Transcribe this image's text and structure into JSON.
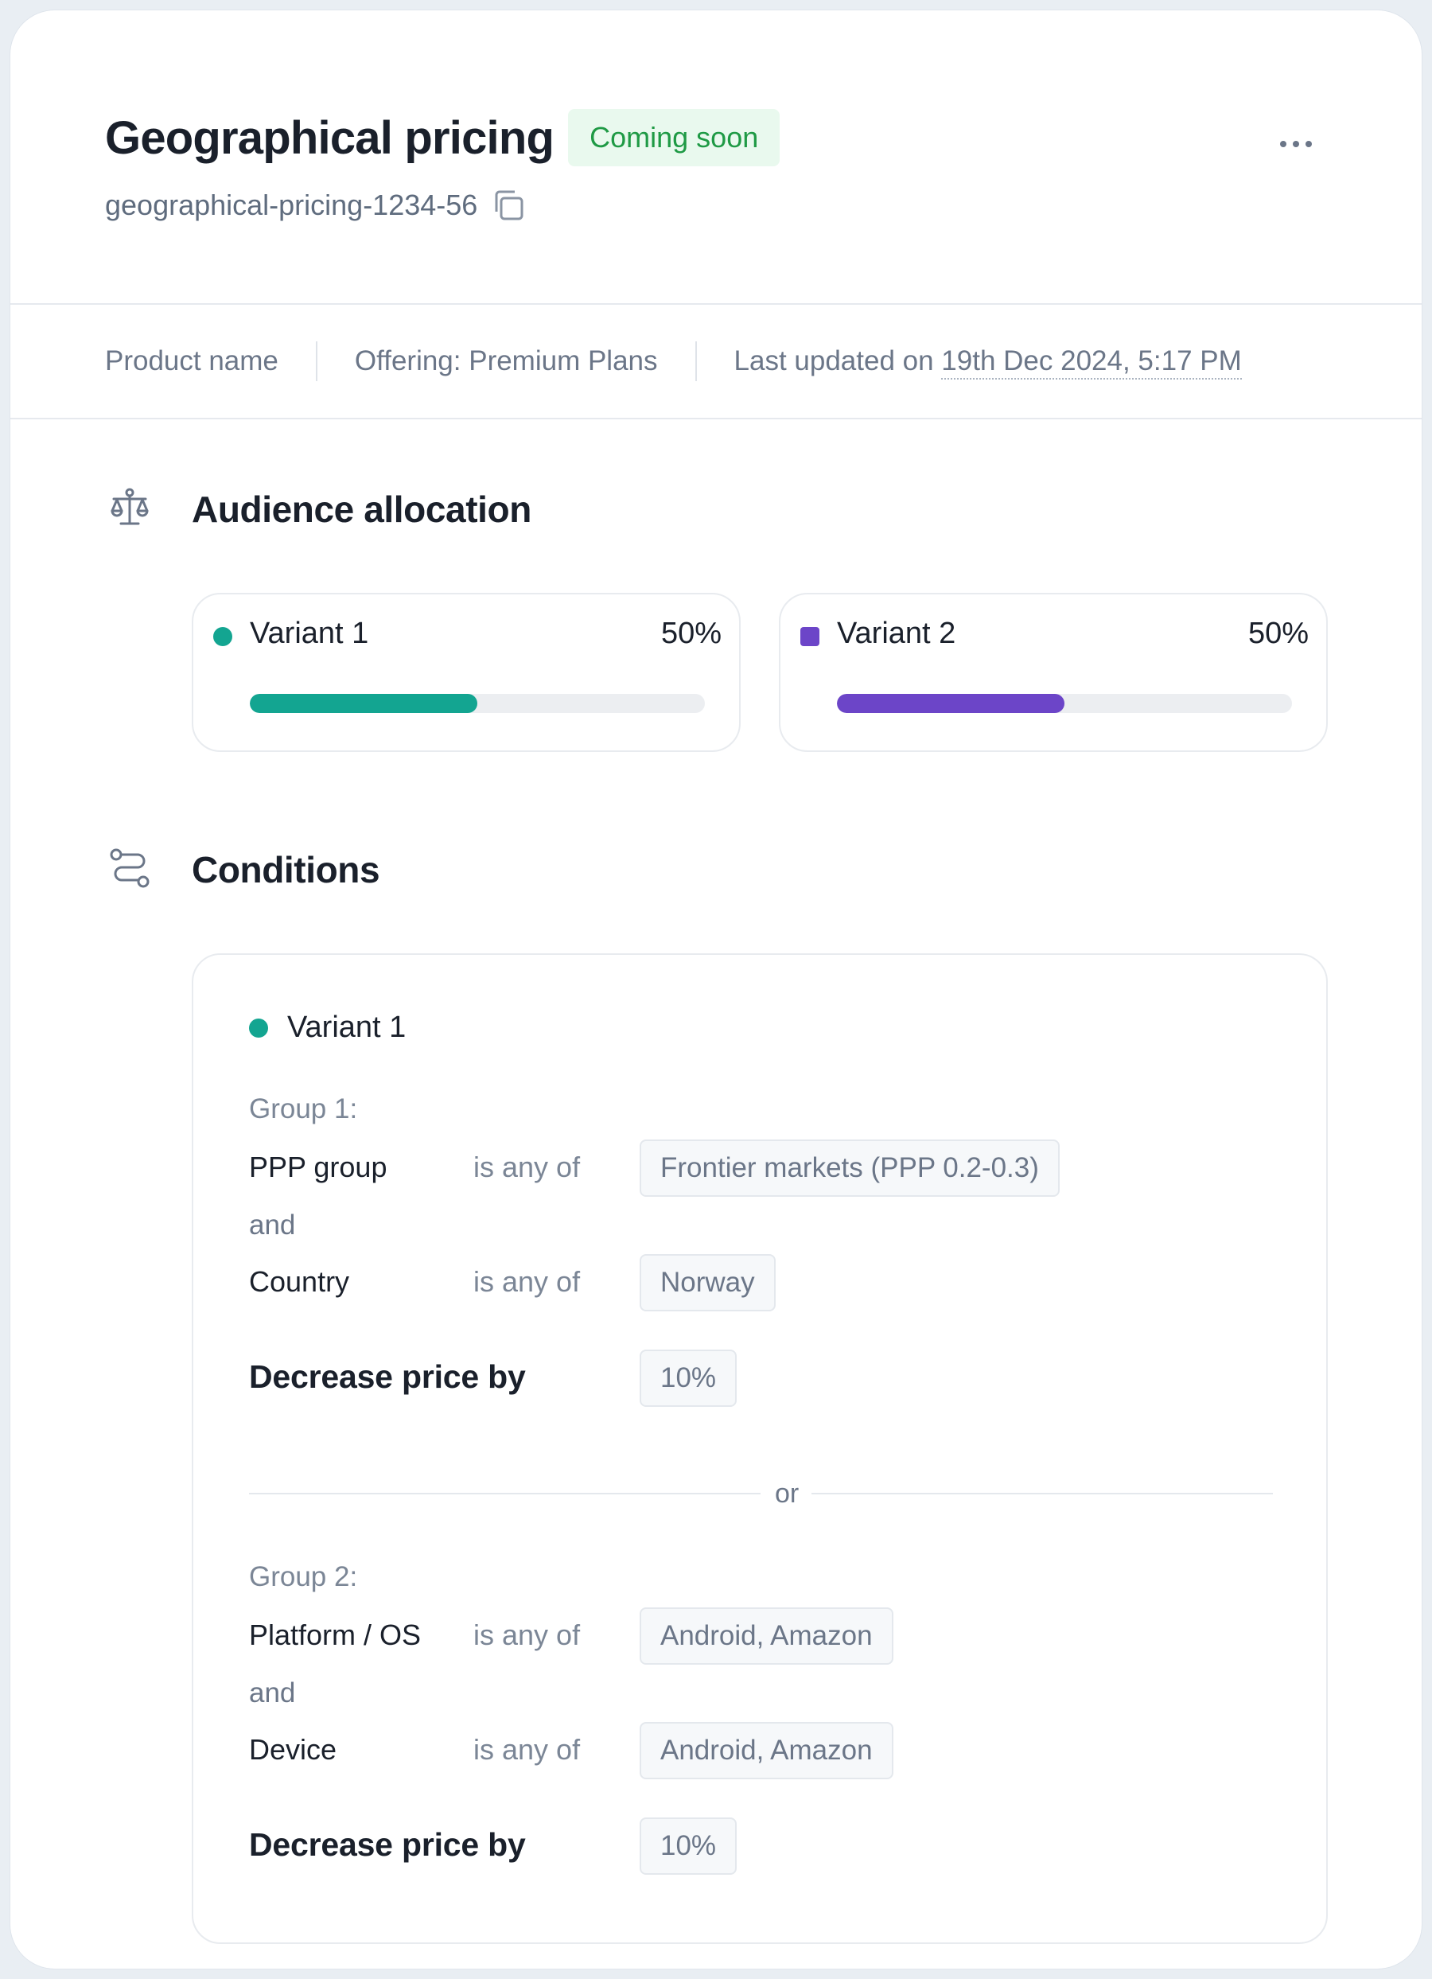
{
  "header": {
    "title": "Geographical pricing",
    "badge": "Coming soon",
    "slug": "geographical-pricing-1234-56"
  },
  "meta": {
    "product": "Product name",
    "offering": "Offering: Premium Plans",
    "updated_prefix": "Last updated on ",
    "updated_date": "19th Dec 2024, 5:17 PM"
  },
  "audience": {
    "title": "Audience allocation",
    "variants": [
      {
        "name": "Variant 1",
        "percent": "50%",
        "share": 0.5,
        "color": "#13a591"
      },
      {
        "name": "Variant 2",
        "percent": "50%",
        "share": 0.5,
        "color": "#6c45c8"
      }
    ]
  },
  "conditions": {
    "title": "Conditions",
    "variant": "Variant 1",
    "groups": [
      {
        "label": "Group 1:",
        "rules": [
          {
            "attribute": "PPP group",
            "operator": "is any of",
            "value": "Frontier markets (PPP 0.2-0.3)"
          },
          {
            "attribute": "Country",
            "operator": "is any of",
            "value": "Norway"
          }
        ],
        "connector": "and",
        "action_label": "Decrease price by",
        "action_value": "10%"
      },
      {
        "label": "Group 2:",
        "rules": [
          {
            "attribute": "Platform / OS",
            "operator": "is any of",
            "value": "Android, Amazon"
          },
          {
            "attribute": "Device",
            "operator": "is any of",
            "value": "Android, Amazon"
          }
        ],
        "connector": "and",
        "action_label": "Decrease price by",
        "action_value": "10%"
      }
    ],
    "or_label": "or"
  },
  "colors": {
    "variant1": "#13a591",
    "variant2": "#6c45c8",
    "badge_bg": "#e9f9ee",
    "badge_text": "#1f9a45"
  },
  "icons": {
    "copy": "copy-icon",
    "more": "more-icon",
    "audience": "scale-icon",
    "conditions": "route-icon"
  }
}
